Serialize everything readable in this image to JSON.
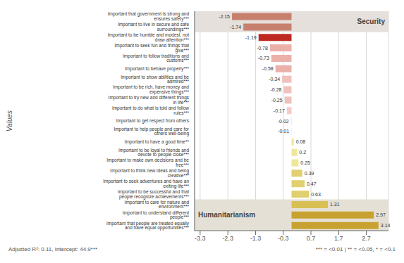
{
  "chart_data": {
    "type": "bar",
    "orientation": "horizontal",
    "categories": [
      "Important that government is strong and ensures safety***",
      "Important to live in secure and safe surroundings***",
      "Important to be humble and modest, not draw attention***",
      "Important to seek fun and things that give***",
      "Important to follow traditions and customs***",
      "Important to behave properly***",
      "Important to show abilities and be admired***",
      "Important to be rich, have money and expensive things***",
      "Important to try new and different things in life***",
      "Important to do what is told and follow rules***",
      "Important to get respect from others",
      "Important to help people and care for others well-being",
      "Important to have a good time**",
      "Important to be loyal to friends and devote to people close***",
      "Important to make own decisions and be free***",
      "Important to think new ideas and being creative***",
      "Important to seek adventures and have an exiting life***",
      "Important to be successful and that people recognize achievements***",
      "Important to care for nature and environment***",
      "Important to understand different people***",
      "Important that people are treated equally and have equal opportunities***"
    ],
    "values": [
      -2.15,
      -1.74,
      -1.19,
      -0.78,
      -0.73,
      -0.58,
      -0.34,
      -0.28,
      -0.25,
      -0.17,
      -0.02,
      -0.01,
      0.08,
      0.2,
      0.25,
      0.39,
      0.47,
      0.63,
      1.31,
      2.97,
      3.14
    ],
    "colors": [
      "#c8806e",
      "#c8806e",
      "#be2a22",
      "#ebb0aa",
      "#ebb0aa",
      "#ebb0aa",
      "#f0c0bc",
      "#f0c0bc",
      "#f0c0bc",
      "#f5ccca",
      "#f5ccca",
      "#f5ccca",
      "#ede89a",
      "#ede89a",
      "#ede89a",
      "#e0d070",
      "#e0d070",
      "#e0d070",
      "#d8c055",
      "#c8a230",
      "#c8a230"
    ],
    "ylabel": "Values",
    "xlim": [
      -3.5,
      3.5
    ],
    "xticks": [
      -3.3,
      -2.3,
      -1.3,
      -0.3,
      0.7,
      1.7,
      2.7
    ],
    "grid": true,
    "data_labels": true,
    "annotations": [
      {
        "text": "Security",
        "categories": [
          "Important that government is strong and ensures safety***",
          "Important to live in secure and safe surroundings***"
        ],
        "color": "#e5e0dc"
      },
      {
        "text": "Humanitarianism",
        "categories": [
          "Important to care for nature and environment***",
          "Important to understand different people***",
          "Important that people are treated equally and have equal opportunities***"
        ],
        "color": "#e5e0d5"
      },
      {
        "text": "Adjusted R²: 0.11, Intercept: 44.9***"
      },
      {
        "text": "*** = <0.01 | ** = <0.05, * = <0.1"
      }
    ]
  }
}
